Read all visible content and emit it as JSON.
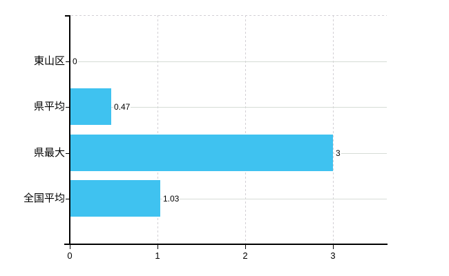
{
  "chart_data": {
    "type": "bar",
    "orientation": "horizontal",
    "title": "",
    "xlabel": "",
    "ylabel": "",
    "categories": [
      "東山区",
      "県平均",
      "県最大",
      "全国平均"
    ],
    "values": [
      0,
      0.47,
      3,
      1.03
    ],
    "value_labels": [
      "0",
      "0.47",
      "3",
      "1.03"
    ],
    "x_ticks": [
      0,
      1,
      2,
      3
    ],
    "x_tick_labels": [
      "0",
      "1",
      "2",
      "3"
    ],
    "xlim": [
      0,
      3.61
    ],
    "grid": true,
    "legend": false,
    "colors": {
      "bar": "#3FC2F0",
      "axis": "#000000",
      "gridline_solid": "#D6DCD6",
      "gridline_dashed": "#D2CFD4",
      "text": "#000000",
      "background": "#FFFFFF"
    }
  }
}
